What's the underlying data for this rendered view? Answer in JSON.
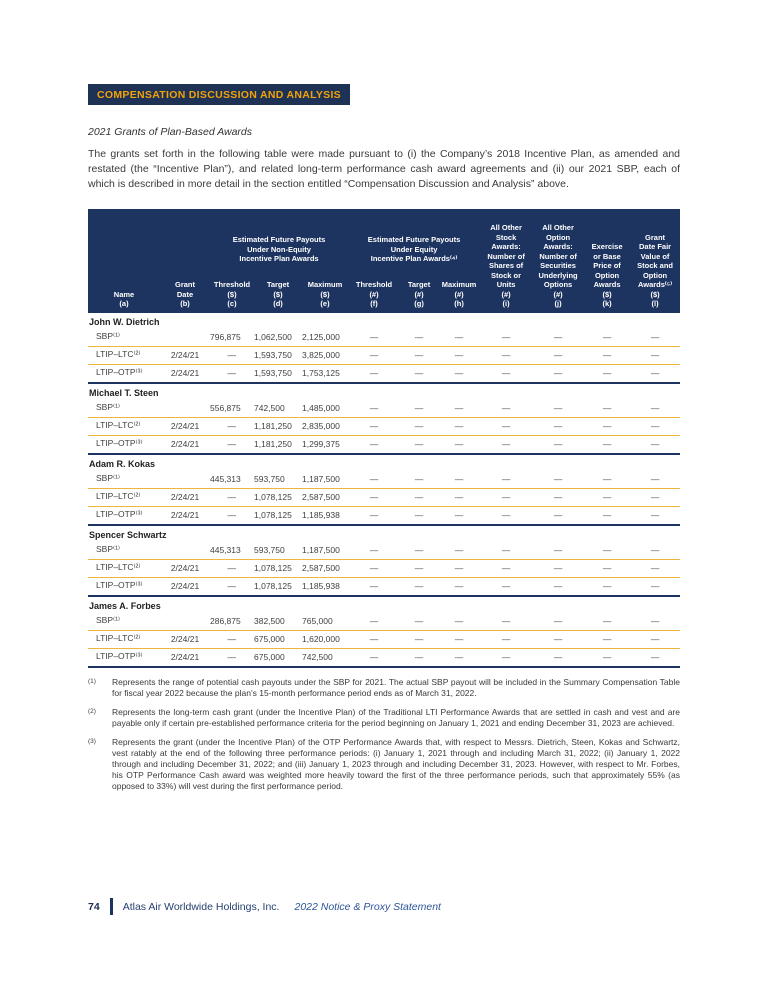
{
  "banner": {
    "title": "COMPENSATION DISCUSSION AND ANALYSIS"
  },
  "section": {
    "heading": "2021 Grants of Plan-Based Awards",
    "intro": "The grants set forth in the following table were made pursuant to (i) the Company’s 2018 Incentive Plan, as amended and restated (the “Incentive Plan”), and related long-term performance cash award agreements and (ii) our 2021 SBP, each of which is described in more detail in the section entitled “Compensation Discussion and Analysis” above."
  },
  "colors": {
    "navy": "#1E3460",
    "banner_navy": "#1E3255",
    "gold_text": "#F2A209",
    "gold_line": "#F1B53D"
  },
  "table": {
    "header": {
      "name": "Name\n(a)",
      "grant_date": "Grant\nDate\n(b)",
      "group_non_equity": "Estimated Future Payouts\nUnder Non-Equity\nIncentive Plan Awards",
      "group_equity": "Estimated Future Payouts\nUnder Equity\nIncentive Plan Awards⁽⁴⁾",
      "threshold_dollar": "Threshold\n($)\n(c)",
      "target_dollar": "Target\n($)\n(d)",
      "maximum_dollar": "Maximum\n($)\n(e)",
      "threshold_num": "Threshold\n(#)\n(f)",
      "target_num": "Target\n(#)\n(g)",
      "maximum_num": "Maximum\n(#)\n(h)",
      "stock_awards": "All Other\nStock\nAwards:\nNumber of\nShares of\nStock or\nUnits\n(#)\n(i)",
      "option_awards": "All Other\nOption\nAwards:\nNumber of\nSecurities\nUnderlying\nOptions\n(#)\n(j)",
      "exercise_price": "Exercise\nor Base\nPrice of\nOption\nAwards\n($)\n(k)",
      "grant_fair_value": "Grant\nDate Fair\nValue of\nStock and\nOption\nAwards⁽⁵⁾\n($)\n(l)"
    },
    "groups": [
      {
        "name": "John W. Dietrich",
        "rows": [
          [
            "SBP⁽¹⁾",
            "",
            "796,875",
            "1,062,500",
            "2,125,000",
            "—",
            "—",
            "—",
            "—",
            "—",
            "—",
            "—"
          ],
          [
            "LTIP–LTC⁽²⁾",
            "2/24/21",
            "—",
            "1,593,750",
            "3,825,000",
            "—",
            "—",
            "—",
            "—",
            "—",
            "—",
            "—"
          ],
          [
            "LTIP–OTP⁽³⁾",
            "2/24/21",
            "—",
            "1,593,750",
            "1,753,125",
            "—",
            "—",
            "—",
            "—",
            "—",
            "—",
            "—"
          ]
        ]
      },
      {
        "name": "Michael T. Steen",
        "rows": [
          [
            "SBP⁽¹⁾",
            "",
            "556,875",
            "742,500",
            "1,485,000",
            "—",
            "—",
            "—",
            "—",
            "—",
            "—",
            "—"
          ],
          [
            "LTIP–LTC⁽²⁾",
            "2/24/21",
            "—",
            "1,181,250",
            "2,835,000",
            "—",
            "—",
            "—",
            "—",
            "—",
            "—",
            "—"
          ],
          [
            "LTIP–OTP⁽³⁾",
            "2/24/21",
            "—",
            "1,181,250",
            "1,299,375",
            "—",
            "—",
            "—",
            "—",
            "—",
            "—",
            "—"
          ]
        ]
      },
      {
        "name": "Adam R. Kokas",
        "rows": [
          [
            "SBP⁽¹⁾",
            "",
            "445,313",
            "593,750",
            "1,187,500",
            "—",
            "—",
            "—",
            "—",
            "—",
            "—",
            "—"
          ],
          [
            "LTIP–LTC⁽²⁾",
            "2/24/21",
            "—",
            "1,078,125",
            "2,587,500",
            "—",
            "—",
            "—",
            "—",
            "—",
            "—",
            "—"
          ],
          [
            "LTIP–OTP⁽³⁾",
            "2/24/21",
            "—",
            "1,078,125",
            "1,185,938",
            "—",
            "—",
            "—",
            "—",
            "—",
            "—",
            "—"
          ]
        ]
      },
      {
        "name": "Spencer Schwartz",
        "rows": [
          [
            "SBP⁽¹⁾",
            "",
            "445,313",
            "593,750",
            "1,187,500",
            "—",
            "—",
            "—",
            "—",
            "—",
            "—",
            "—"
          ],
          [
            "LTIP–LTC⁽²⁾",
            "2/24/21",
            "—",
            "1,078,125",
            "2,587,500",
            "—",
            "—",
            "—",
            "—",
            "—",
            "—",
            "—"
          ],
          [
            "LTIP–OTP⁽³⁾",
            "2/24/21",
            "—",
            "1,078,125",
            "1,185,938",
            "—",
            "—",
            "—",
            "—",
            "—",
            "—",
            "—"
          ]
        ]
      },
      {
        "name": "James A. Forbes",
        "rows": [
          [
            "SBP⁽¹⁾",
            "",
            "286,875",
            "382,500",
            "765,000",
            "—",
            "—",
            "—",
            "—",
            "—",
            "—",
            "—"
          ],
          [
            "LTIP–LTC⁽²⁾",
            "2/24/21",
            "—",
            "675,000",
            "1,620,000",
            "—",
            "—",
            "—",
            "—",
            "—",
            "—",
            "—"
          ],
          [
            "LTIP–OTP⁽³⁾",
            "2/24/21",
            "—",
            "675,000",
            "742,500",
            "—",
            "—",
            "—",
            "—",
            "—",
            "—",
            "—"
          ]
        ]
      }
    ]
  },
  "footnotes": [
    {
      "marker": "(1)",
      "text": "Represents the range of potential cash payouts under the SBP for 2021. The actual SBP payout will be included in the Summary Compensation Table for fiscal year 2022 because the plan’s 15-month performance period ends as of March 31, 2022."
    },
    {
      "marker": "(2)",
      "text": "Represents the long-term cash grant (under the Incentive Plan) of the Traditional LTI Performance Awards that are settled in cash and vest and are payable only if certain pre-established performance criteria for the period beginning on January 1, 2021 and ending December 31, 2023 are achieved."
    },
    {
      "marker": "(3)",
      "text": "Represents the grant (under the Incentive Plan) of the OTP Performance Awards that, with respect to Messrs. Dietrich, Steen, Kokas and Schwartz, vest ratably at the end of the following three performance periods: (i) January 1, 2021 through and including March 31, 2022; (ii) January 1, 2022 through and including December 31, 2022; and (iii) January 1, 2023 through and including December 31, 2023. However, with respect to Mr. Forbes, his OTP Performance Cash award was weighted more heavily toward the first of the three performance periods, such that approximately 55% (as opposed to 33%) will vest during the first performance period."
    }
  ],
  "footer": {
    "page_number": "74",
    "company": "Atlas Air Worldwide Holdings, Inc.",
    "document": "2022 Notice & Proxy Statement"
  }
}
